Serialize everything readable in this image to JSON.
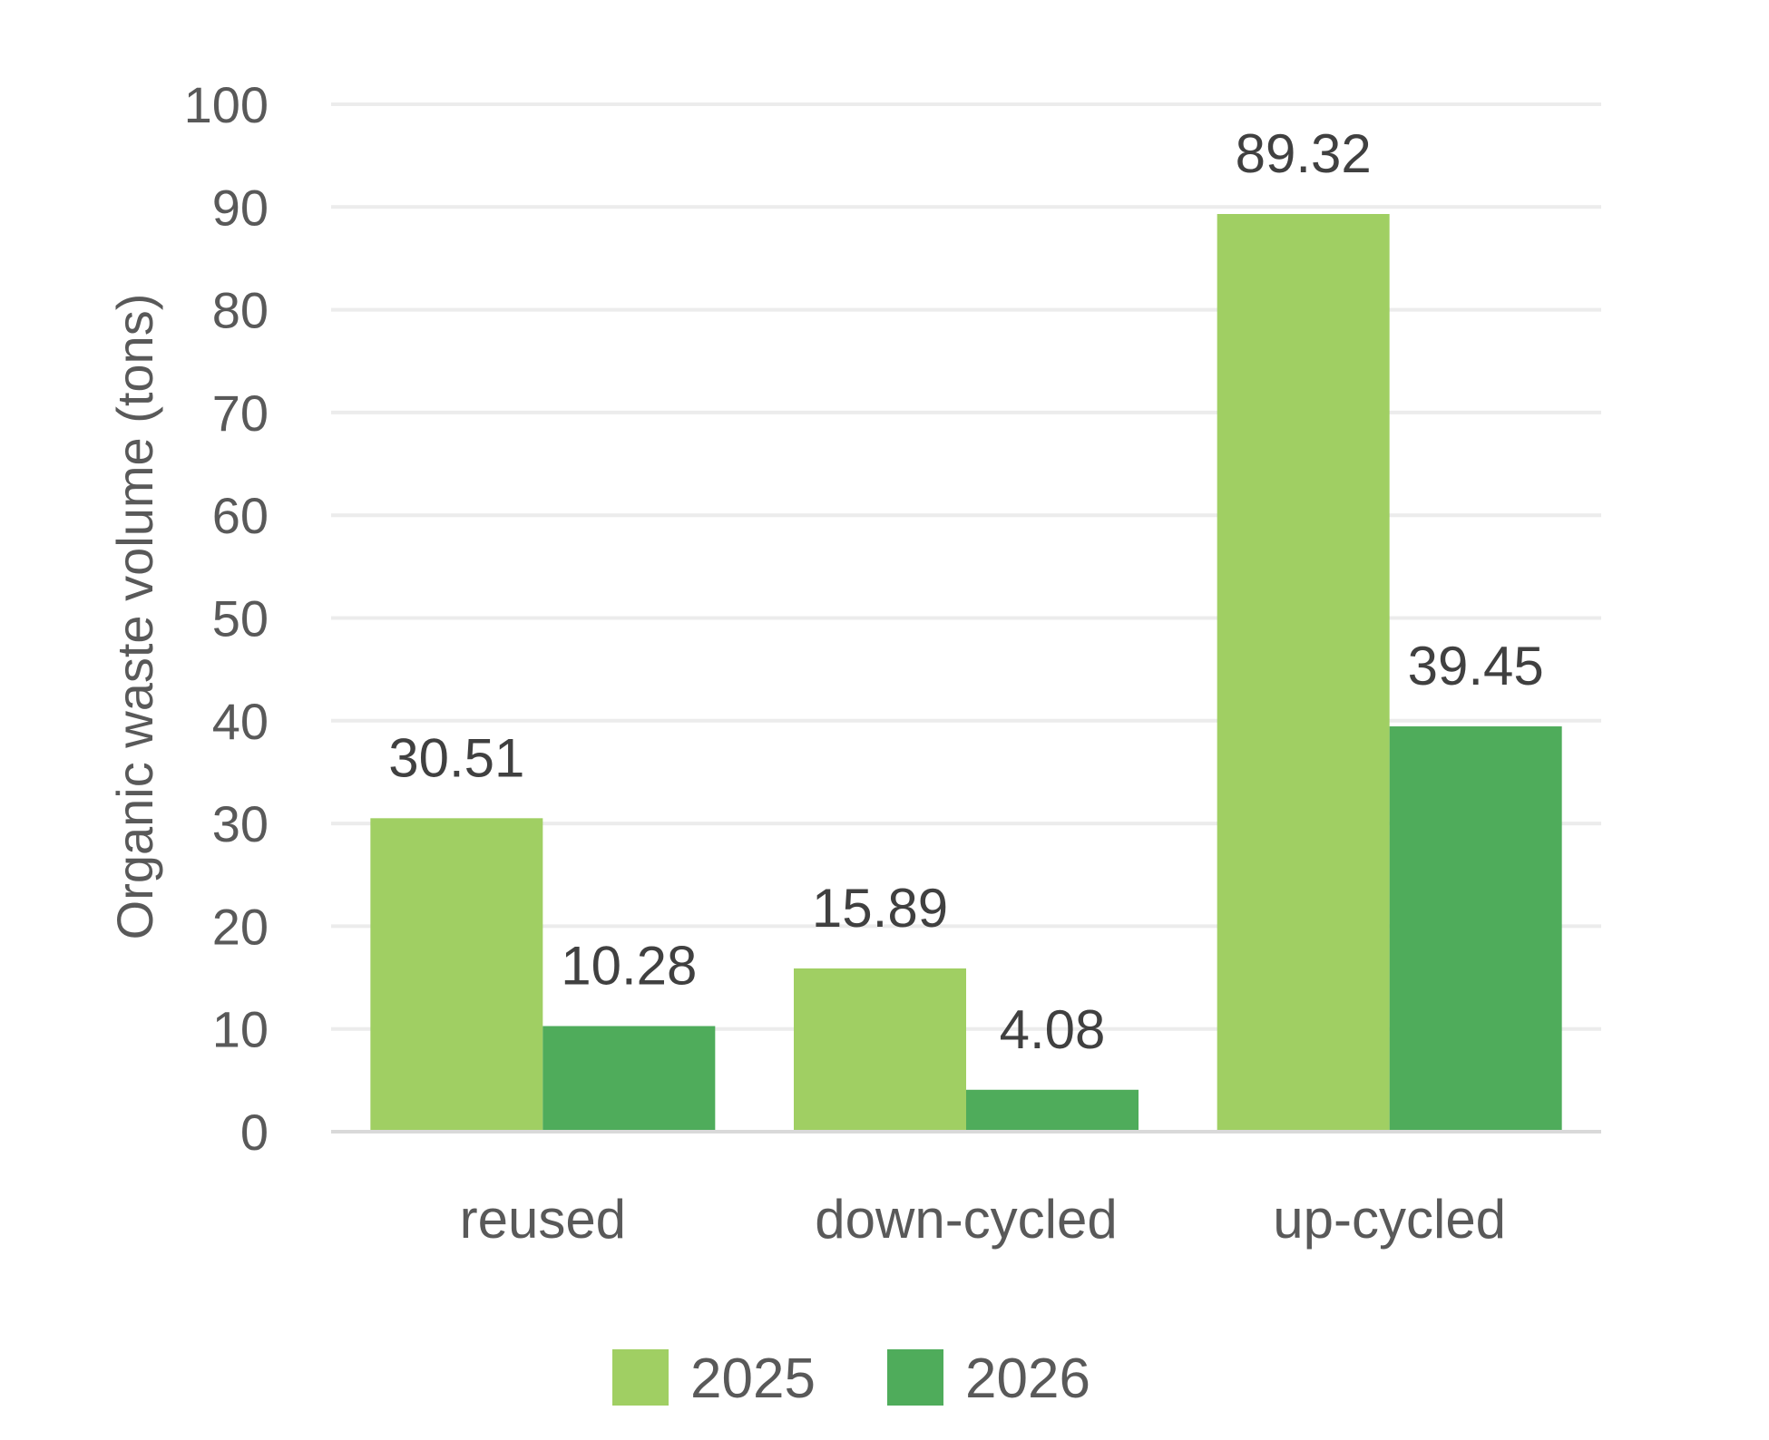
{
  "chart_data": {
    "type": "bar",
    "categories": [
      "reused",
      "down-cycled",
      "up-cycled"
    ],
    "series": [
      {
        "name": "2025",
        "values": [
          30.51,
          15.89,
          89.32
        ],
        "color": "#a0cf63"
      },
      {
        "name": "2026",
        "values": [
          10.28,
          4.08,
          39.45
        ],
        "color": "#4fac5b"
      }
    ],
    "data_labels": [
      [
        "30.51",
        "15.89",
        "89.32"
      ],
      [
        "10.28",
        "4.08",
        "39.45"
      ]
    ],
    "ylabel": "Organic waste volume (tons)",
    "xlabel": "",
    "ylim": [
      0,
      100
    ],
    "yticks": [
      0,
      10,
      20,
      30,
      40,
      50,
      60,
      70,
      80,
      90,
      100
    ],
    "ytick_labels": [
      "0",
      "10",
      "20",
      "30",
      "40",
      "50",
      "60",
      "70",
      "80",
      "90",
      "100"
    ],
    "grid": true,
    "legend_position": "bottom"
  }
}
